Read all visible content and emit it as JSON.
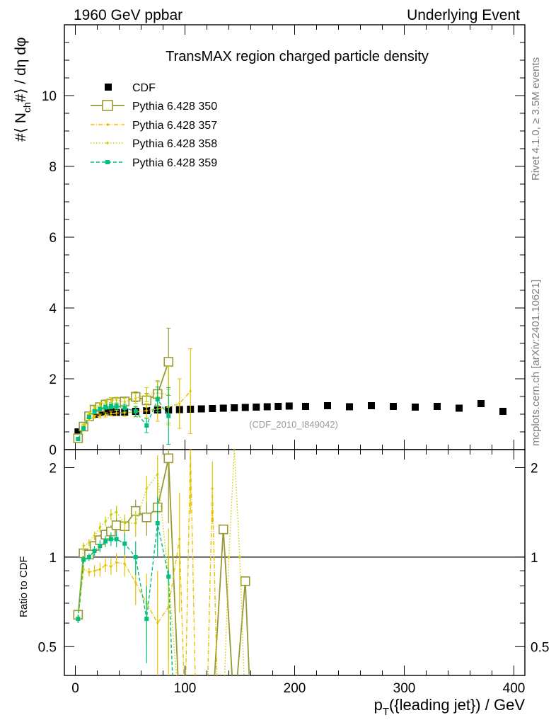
{
  "header": {
    "left": "1960 GeV ppbar",
    "right": "Underlying Event"
  },
  "side_labels": {
    "rivet": "Rivet 4.1.0, ≥ 3.5M events",
    "mcplots": "mcplots.cern.ch [arXiv:2401.10621]"
  },
  "chart_data": {
    "type": "scatter",
    "title": "TransMAX region charged particle density",
    "analysis_label": "(CDF_2010_I849042)",
    "xlabel_main": "p",
    "xlabel_sub": "T",
    "xlabel_rest": "({leading jet}) / GeV",
    "ylabel_main": "#⟨ N",
    "ylabel_sub": "ch",
    "ylabel_rest": "#⟩ / dη dφ",
    "ratio_ylabel": "Ratio to CDF",
    "xlim": [
      -10,
      410
    ],
    "ylim_main": [
      0,
      12
    ],
    "ylim_ratio": [
      0.4,
      2.3
    ],
    "ratio_scale": "log",
    "x_ticks": [
      "0",
      "100",
      "200",
      "300",
      "400"
    ],
    "y_ticks_main": [
      "0",
      "2",
      "4",
      "6",
      "8",
      "10"
    ],
    "y_ticks_ratio": [
      "0.5",
      "1",
      "2"
    ],
    "legend": [
      "CDF",
      "Pythia 6.428 350",
      "Pythia 6.428 357",
      "Pythia 6.428 358",
      "Pythia 6.428 359"
    ],
    "series": [
      {
        "name": "CDF",
        "color": "#000000",
        "x": [
          2.5,
          7.5,
          12.5,
          17.5,
          22.5,
          27.5,
          32.5,
          37.5,
          45,
          55,
          65,
          75,
          85,
          95,
          105,
          115,
          125,
          135,
          145,
          155,
          165,
          175,
          185,
          195,
          210,
          230,
          250,
          270,
          290,
          310,
          330,
          350,
          370,
          390
        ],
        "y": [
          0.5,
          0.63,
          0.92,
          1.0,
          1.05,
          1.07,
          1.07,
          1.05,
          1.06,
          1.08,
          1.1,
          1.12,
          1.12,
          1.13,
          1.14,
          1.15,
          1.16,
          1.17,
          1.18,
          1.19,
          1.2,
          1.21,
          1.22,
          1.23,
          1.22,
          1.24,
          1.21,
          1.24,
          1.22,
          1.2,
          1.22,
          1.17,
          1.3,
          1.08
        ]
      },
      {
        "name": "Pythia 6.428 350",
        "color": "#999933",
        "x": [
          2.5,
          7.5,
          12.5,
          17.5,
          22.5,
          27.5,
          32.5,
          37.5,
          45,
          55,
          65,
          75,
          85
        ],
        "y": [
          0.32,
          0.65,
          0.94,
          1.13,
          1.2,
          1.27,
          1.3,
          1.34,
          1.36,
          1.49,
          1.39,
          1.57,
          2.48
        ],
        "err": [
          0.02,
          0.02,
          0.03,
          0.04,
          0.05,
          0.06,
          0.07,
          0.08,
          0.1,
          0.14,
          0.2,
          0.35,
          0.95
        ],
        "ratio_x": [
          2.5,
          7.5,
          12.5,
          17.5,
          22.5,
          27.5,
          32.5,
          37.5,
          45,
          55,
          65,
          75,
          85,
          95,
          125,
          135,
          145,
          155,
          160
        ],
        "ratio": [
          0.64,
          1.03,
          1.02,
          1.09,
          1.14,
          1.19,
          1.22,
          1.28,
          1.27,
          1.43,
          1.36,
          1.47,
          2.15,
          0.3,
          0.3,
          1.24,
          0.3,
          0.83,
          0.3
        ],
        "ratio_err": [
          0.02,
          0.03,
          0.03,
          0.04,
          0.05,
          0.05,
          0.06,
          0.07,
          0.09,
          0.13,
          0.18,
          0.3,
          0.85,
          0,
          0,
          0,
          0,
          0,
          0
        ]
      },
      {
        "name": "Pythia 6.428 357",
        "color": "#e6c200",
        "x": [
          2.5,
          7.5,
          12.5,
          17.5,
          22.5,
          27.5,
          32.5,
          37.5,
          45,
          55,
          65,
          75,
          85,
          95,
          105
        ],
        "y": [
          0.3,
          0.6,
          0.85,
          0.93,
          0.95,
          0.98,
          1.02,
          1.03,
          1.04,
          1.06,
          1.1,
          1.15,
          1.2,
          1.3,
          1.65
        ],
        "err": [
          0.02,
          0.02,
          0.03,
          0.04,
          0.05,
          0.06,
          0.07,
          0.08,
          0.1,
          0.14,
          0.2,
          0.35,
          0.5,
          0.7,
          1.2
        ],
        "ratio_x": [
          2.5,
          7.5,
          12.5,
          17.5,
          22.5,
          27.5,
          32.5,
          37.5,
          45,
          55,
          65,
          75,
          85,
          95,
          100,
          105,
          110,
          120,
          125,
          130
        ],
        "ratio": [
          0.62,
          0.91,
          0.89,
          0.9,
          0.91,
          0.94,
          0.93,
          0.96,
          0.95,
          0.82,
          0.7,
          0.6,
          0.68,
          1.15,
          0.3,
          2.3,
          0.3,
          0.3,
          1.7,
          0.3
        ],
        "ratio_err": [
          0.02,
          0.03,
          0.03,
          0.04,
          0.05,
          0.05,
          0.06,
          0.07,
          0.09,
          0.13,
          0.18,
          0.3,
          0.4,
          0.5,
          0,
          0.9,
          0,
          0,
          0.4,
          0
        ]
      },
      {
        "name": "Pythia 6.428 358",
        "color": "#cccc00",
        "x": [
          2.5,
          7.5,
          12.5,
          17.5,
          22.5,
          27.5,
          32.5,
          37.5,
          45,
          55,
          65,
          75,
          85
        ],
        "y": [
          0.28,
          0.7,
          1.02,
          1.18,
          1.28,
          1.35,
          1.4,
          1.4,
          1.35,
          1.45,
          1.55,
          1.6,
          1.55
        ],
        "err": [
          0.02,
          0.02,
          0.03,
          0.04,
          0.05,
          0.06,
          0.07,
          0.08,
          0.1,
          0.14,
          0.2,
          0.35,
          0.8
        ],
        "ratio_x": [
          2.5,
          7.5,
          12.5,
          17.5,
          22.5,
          27.5,
          32.5,
          37.5,
          45,
          55,
          65,
          75,
          85,
          95,
          105,
          115,
          125,
          135,
          140,
          145,
          150,
          155
        ],
        "ratio": [
          0.62,
          1.09,
          1.12,
          1.18,
          1.26,
          1.32,
          1.39,
          1.42,
          1.3,
          1.3,
          1.7,
          1.9,
          0.85,
          0.3,
          0.3,
          0.3,
          0.3,
          0.3,
          1.0,
          2.3,
          1.0,
          0.3
        ],
        "ratio_err": [
          0.02,
          0.03,
          0.03,
          0.04,
          0.05,
          0.05,
          0.06,
          0.07,
          0.09,
          0.13,
          0.18,
          0.3,
          0.4,
          0,
          0,
          0,
          0,
          0,
          0,
          0,
          0,
          0
        ]
      },
      {
        "name": "Pythia 6.428 359",
        "color": "#00c080",
        "x": [
          2.5,
          7.5,
          12.5,
          17.5,
          22.5,
          27.5,
          32.5,
          37.5,
          45,
          55,
          65,
          75,
          85
        ],
        "y": [
          0.3,
          0.6,
          0.92,
          1.08,
          1.15,
          1.2,
          1.22,
          1.22,
          1.18,
          1.08,
          0.68,
          1.42,
          0.95
        ],
        "err": [
          0.02,
          0.02,
          0.03,
          0.04,
          0.05,
          0.06,
          0.07,
          0.08,
          0.1,
          0.14,
          0.2,
          0.35,
          0.8
        ],
        "ratio_x": [
          2.5,
          7.5,
          12.5,
          17.5,
          22.5,
          27.5,
          32.5,
          37.5,
          45,
          55,
          65,
          75,
          85,
          90
        ],
        "ratio": [
          0.62,
          0.98,
          1.0,
          1.05,
          1.09,
          1.13,
          1.15,
          1.15,
          1.11,
          1.0,
          0.62,
          1.3,
          0.86,
          0.3
        ],
        "ratio_err": [
          0.02,
          0.03,
          0.03,
          0.04,
          0.05,
          0.05,
          0.06,
          0.07,
          0.09,
          0.13,
          0.18,
          0.3,
          0.05,
          0
        ]
      }
    ]
  }
}
